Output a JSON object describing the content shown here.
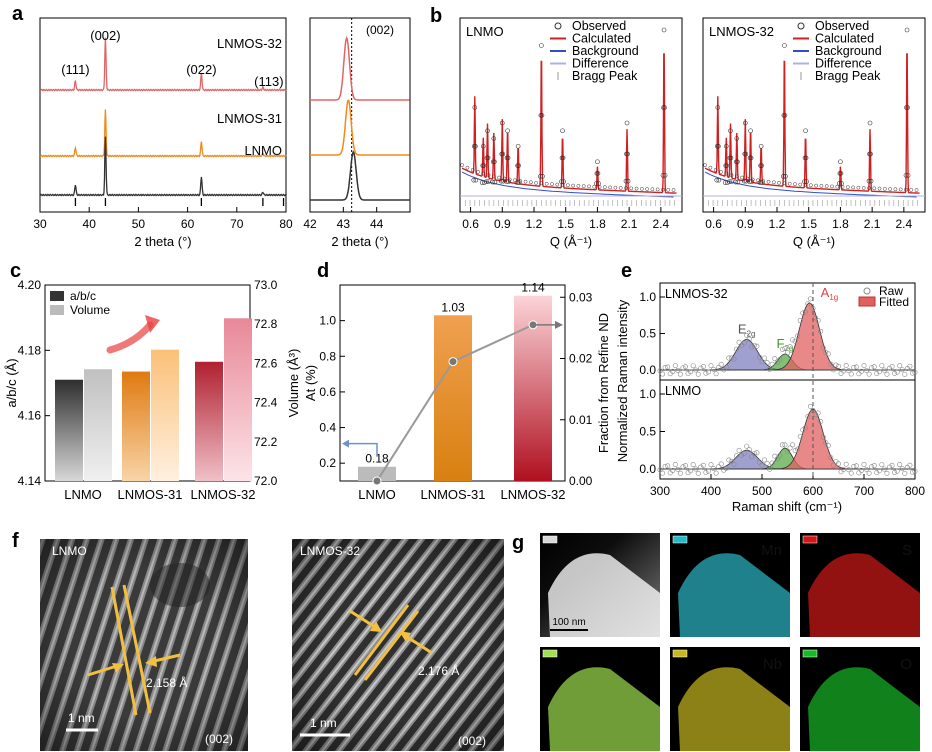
{
  "panel_labels": {
    "a": "a",
    "b": "b",
    "c": "c",
    "d": "d",
    "e": "e",
    "f": "f",
    "g": "g"
  },
  "chart_data": [
    {
      "panel": "a",
      "type": "line",
      "xlabel": "2 theta (°)",
      "xlim": [
        30,
        80
      ],
      "xticks": [
        "30",
        "40",
        "50",
        "60",
        "70",
        "80"
      ],
      "series": [
        {
          "name": "LNMOS-32",
          "color": "#e06666"
        },
        {
          "name": "LNMOS-31",
          "color": "#f08a1c"
        },
        {
          "name": "LNMO",
          "color": "#333333"
        }
      ],
      "peaks": [
        {
          "label": "(111)",
          "x": 37.2
        },
        {
          "label": "(002)",
          "x": 43.3
        },
        {
          "label": "(022)",
          "x": 62.8
        },
        {
          "label": "(113)",
          "x": 75.3
        }
      ],
      "reference_ticks": [
        37.2,
        43.3,
        62.8,
        75.3,
        79.5
      ]
    },
    {
      "panel": "a-inset",
      "type": "line",
      "xlabel": "2 theta (°)",
      "xlim": [
        42,
        45
      ],
      "xticks": [
        "42",
        "43",
        "44"
      ],
      "annotation": "(002)",
      "dashed_x": 43.25,
      "peak_positions": {
        "LNMOS-32": 43.1,
        "LNMOS-31": 43.15,
        "LNMO": 43.3
      }
    },
    {
      "panel": "b-left",
      "type": "scatter",
      "title": "LNMO",
      "xlabel": "Q (Å⁻¹)",
      "xlim": [
        0.5,
        2.6
      ],
      "xticks": [
        "0.6",
        "0.9",
        "1.2",
        "1.5",
        "1.8",
        "2.1",
        "2.4"
      ],
      "legend": [
        "Observed",
        "Calculated",
        "Background",
        "Difference",
        "Bragg Peak"
      ]
    },
    {
      "panel": "b-right",
      "type": "scatter",
      "title": "LNMOS-32",
      "xlabel": "Q (Å⁻¹)",
      "xlim": [
        0.5,
        2.6
      ],
      "xticks": [
        "0.6",
        "0.9",
        "1.2",
        "1.5",
        "1.8",
        "2.1",
        "2.4"
      ],
      "legend": [
        "Observed",
        "Calculated",
        "Background",
        "Difference",
        "Bragg Peak"
      ]
    },
    {
      "panel": "c",
      "type": "bar",
      "categories": [
        "LNMO",
        "LNMOS-31",
        "LNMOS-32"
      ],
      "series": [
        {
          "name": "a/b/c",
          "values": [
            4.171,
            4.1735,
            4.1765
          ]
        },
        {
          "name": "Volume",
          "values": [
            72.57,
            72.67,
            72.83
          ]
        }
      ],
      "ylabel": "a/b/c (Å)",
      "ylim": [
        4.14,
        4.2
      ],
      "yticks": [
        "4.14",
        "4.16",
        "4.18",
        "4.20"
      ],
      "y2label": "Volume (Å³)",
      "y2lim": [
        72.0,
        73.0
      ],
      "y2ticks": [
        "72.0",
        "72.2",
        "72.4",
        "72.6",
        "72.8",
        "73.0"
      ]
    },
    {
      "panel": "d",
      "type": "bar",
      "categories": [
        "LNMO",
        "LNMOS-31",
        "LNMOS-32"
      ],
      "values": [
        0.18,
        1.03,
        1.14
      ],
      "data_labels": [
        "0.18",
        "1.03",
        "1.14"
      ],
      "ylabel": "At (%)",
      "ylim": [
        0.1,
        1.2
      ],
      "yticks": [
        "0.2",
        "0.4",
        "0.6",
        "0.8",
        "1.0"
      ],
      "y2label": "Fraction from Refine ND",
      "y2lim": [
        0.0,
        0.032
      ],
      "y2ticks": [
        "0.00",
        "0.01",
        "0.02",
        "0.03"
      ],
      "line_values": [
        0.0,
        0.0195,
        0.0255
      ]
    },
    {
      "panel": "e",
      "type": "line",
      "xlabel": "Raman shift (cm⁻¹)",
      "ylabel": "Normalized Raman intensity",
      "xlim": [
        300,
        800
      ],
      "xticks": [
        "300",
        "400",
        "500",
        "600",
        "700",
        "800"
      ],
      "yticks": [
        "0.0",
        "0.5",
        "1.0"
      ],
      "dashed_x": 600,
      "subplots": [
        {
          "title": "LNMOS-32",
          "bands": [
            {
              "label": "E",
              "sub": "2g",
              "center": 470,
              "height": 0.42,
              "color": "#8080c0"
            },
            {
              "label": "F",
              "sub": "2g",
              "center": 545,
              "height": 0.22,
              "color": "#5aaa4a"
            },
            {
              "label": "A",
              "sub": "1g",
              "center": 593,
              "height": 0.92,
              "color": "#e06060"
            }
          ]
        },
        {
          "title": "LNMO",
          "bands": [
            {
              "label": "",
              "sub": "",
              "center": 470,
              "height": 0.25,
              "color": "#8080c0"
            },
            {
              "label": "",
              "sub": "",
              "center": 545,
              "height": 0.28,
              "color": "#5aaa4a"
            },
            {
              "label": "",
              "sub": "",
              "center": 600,
              "height": 0.8,
              "color": "#e06060"
            }
          ]
        }
      ],
      "legend": [
        "Raw",
        "Fitted"
      ]
    }
  ],
  "panel_f": {
    "left": {
      "title": "LNMO",
      "spacing": "2.158 Å",
      "plane": "(002)",
      "scale": "1 nm"
    },
    "right": {
      "title": "LNMOS-32",
      "spacing": "2.176 Å",
      "plane": "(002)",
      "scale": "1 nm"
    }
  },
  "panel_g": {
    "scale": "100 nm",
    "tiles": [
      {
        "label": "",
        "color": "#d8d8d8"
      },
      {
        "label": "Mn",
        "color": "#2cb8c8"
      },
      {
        "label": "S",
        "color": "#d01818"
      },
      {
        "label": "",
        "color": "#a0e050"
      },
      {
        "label": "Nb",
        "color": "#c8b820"
      },
      {
        "label": "O",
        "color": "#18b828"
      }
    ]
  }
}
